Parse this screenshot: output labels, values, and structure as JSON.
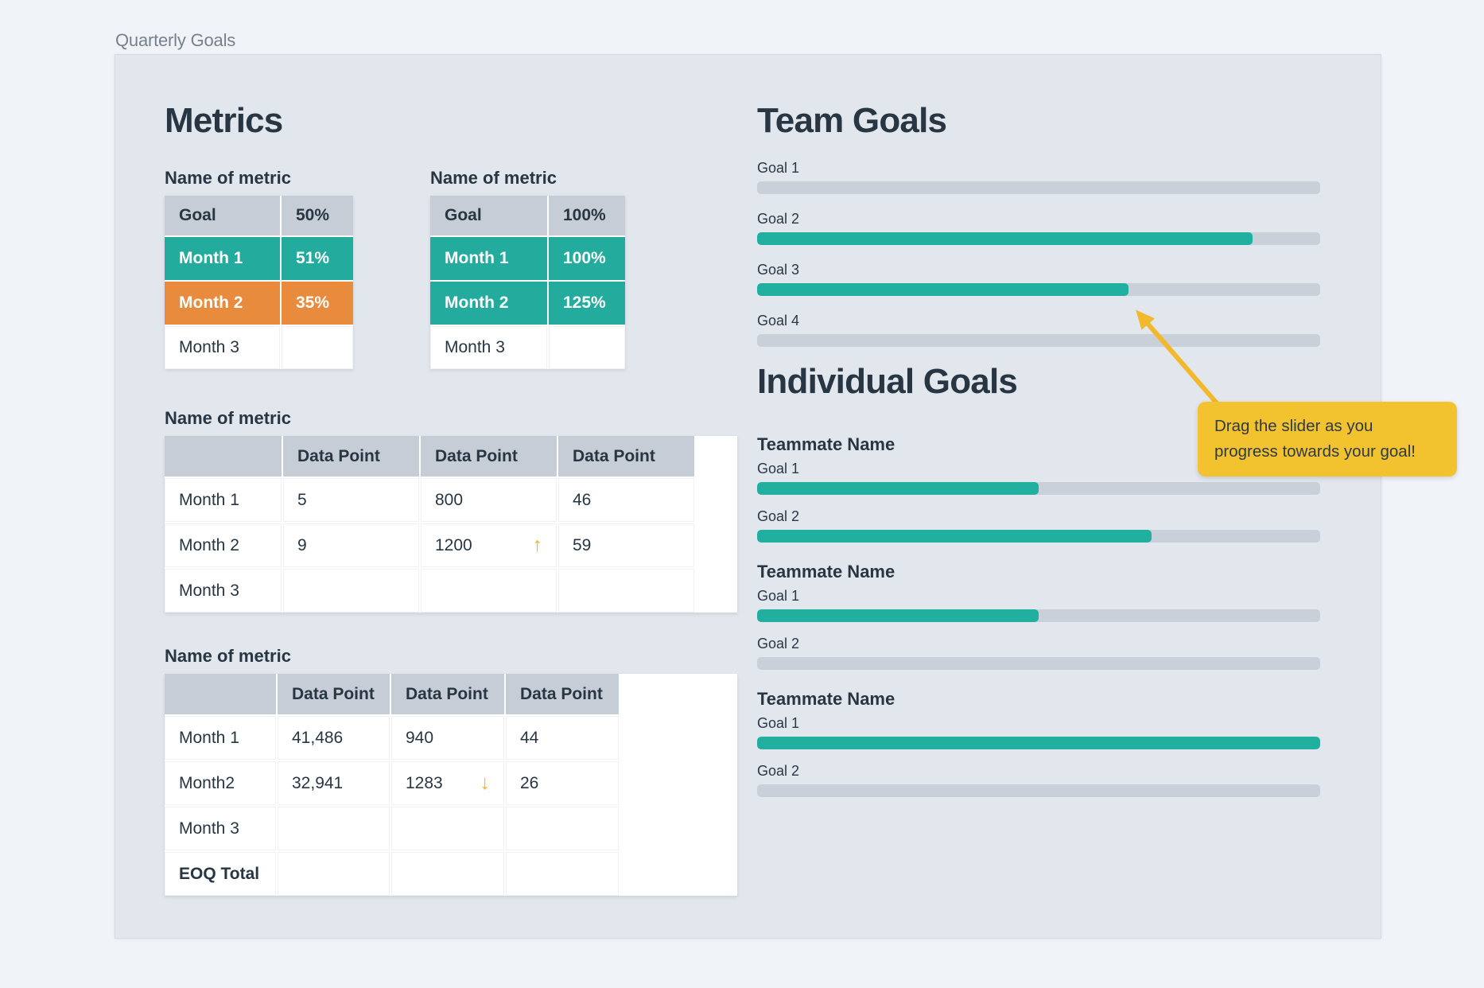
{
  "window": {
    "title": "Quarterly Goals"
  },
  "icons": {
    "trend_up": "↑",
    "trend_down": "↓"
  },
  "colors": {
    "teal": "#23AC9D",
    "orange": "#E98B3D",
    "tooltip_yellow": "#F2C32F",
    "track_gray": "#C9D0D9",
    "header_gray": "#C6CDD6",
    "panel": "#E2E7ED",
    "background": "#F0F3F7",
    "text_navy": "#273642"
  },
  "metrics": {
    "heading": "Metrics",
    "small_tables": [
      {
        "title": "Name of metric",
        "header": {
          "label": "Goal",
          "value": "50%"
        },
        "rows": [
          {
            "label": "Month 1",
            "value": "51%"
          },
          {
            "label": "Month 2",
            "value": "35%"
          },
          {
            "label": "Month 3",
            "value": ""
          }
        ]
      },
      {
        "title": "Name of metric",
        "header": {
          "label": "Goal",
          "value": "100%"
        },
        "rows": [
          {
            "label": "Month 1",
            "value": "100%"
          },
          {
            "label": "Month 2",
            "value": "125%"
          },
          {
            "label": "Month 3",
            "value": ""
          }
        ]
      }
    ],
    "table3": {
      "title": "Name of metric",
      "headers": [
        "",
        "Data Point",
        "Data Point",
        "Data Point"
      ],
      "rows": [
        {
          "label": "Month 1",
          "c1": "5",
          "c2": "800",
          "c3": "46"
        },
        {
          "label": "Month 2",
          "c1": "9",
          "c2": "1200",
          "c3": "59"
        },
        {
          "label": "Month 3",
          "c1": "",
          "c2": "",
          "c3": ""
        }
      ],
      "trend": {
        "row": 1,
        "col": 2,
        "direction": "up"
      }
    },
    "table4": {
      "title": "Name of metric",
      "headers": [
        "",
        "Data Point",
        "Data Point",
        "Data Point"
      ],
      "rows": [
        {
          "label": "Month 1",
          "c1": "41,486",
          "c2": "940",
          "c3": "44"
        },
        {
          "label": "Month2",
          "c1": "32,941",
          "c2": "1283",
          "c3": "26"
        },
        {
          "label": "Month 3",
          "c1": "",
          "c2": "",
          "c3": ""
        },
        {
          "label": "EOQ Total",
          "c1": "",
          "c2": "",
          "c3": ""
        }
      ],
      "trend": {
        "row": 1,
        "col": 2,
        "direction": "down"
      }
    }
  },
  "team_goals": {
    "heading": "Team Goals",
    "goals": [
      {
        "label": "Goal 1",
        "progress": 0
      },
      {
        "label": "Goal 2",
        "progress": 88
      },
      {
        "label": "Goal 3",
        "progress": 66
      },
      {
        "label": "Goal 4",
        "progress": 0
      }
    ]
  },
  "individual_goals": {
    "heading": "Individual Goals",
    "teammates": [
      {
        "name": "Teammate Name",
        "goals": [
          {
            "label": "Goal 1",
            "progress": 50
          },
          {
            "label": "Goal 2",
            "progress": 70
          }
        ]
      },
      {
        "name": "Teammate Name",
        "goals": [
          {
            "label": "Goal 1",
            "progress": 50
          },
          {
            "label": "Goal 2",
            "progress": 0
          }
        ]
      },
      {
        "name": "Teammate Name",
        "goals": [
          {
            "label": "Goal 1",
            "progress": 100
          },
          {
            "label": "Goal 2",
            "progress": 0
          }
        ]
      }
    ]
  },
  "tooltip": {
    "text": "Drag the slider as you progress towards your goal!"
  }
}
